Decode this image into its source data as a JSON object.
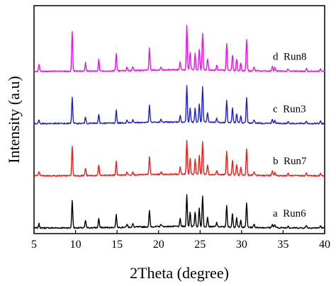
{
  "chart_data": {
    "type": "line",
    "xlabel": "2Theta (degree)",
    "ylabel": "Intensity (a.u)",
    "xlim": [
      5,
      40
    ],
    "x_ticks": [
      "5",
      "10",
      "15",
      "20",
      "25",
      "30",
      "35",
      "40"
    ],
    "x_tick_values": [
      5,
      10,
      15,
      20,
      25,
      30,
      35,
      40
    ],
    "grid": false,
    "y_ticks": "none",
    "peaks_2theta": [
      5.6,
      9.6,
      11.2,
      12.8,
      14.9,
      16.2,
      16.9,
      18.9,
      20.3,
      22.6,
      23.4,
      23.8,
      24.4,
      24.9,
      25.3,
      25.9,
      27.0,
      28.2,
      28.9,
      29.4,
      29.9,
      30.6,
      31.5,
      33.7,
      34.0,
      35.6,
      37.8,
      39.5
    ],
    "series": [
      {
        "name": "a  Run6",
        "color": "#000000",
        "baseline": 0.0,
        "peak_heights": [
          0.08,
          0.52,
          0.14,
          0.18,
          0.24,
          0.06,
          0.06,
          0.3,
          0.05,
          0.14,
          0.6,
          0.28,
          0.28,
          0.35,
          0.58,
          0.18,
          0.08,
          0.4,
          0.26,
          0.18,
          0.13,
          0.47,
          0.07,
          0.07,
          0.06,
          0.04,
          0.05,
          0.04
        ]
      },
      {
        "name": "b  Run7",
        "color": "#e8201e",
        "baseline": 1.0,
        "peak_heights": [
          0.08,
          0.55,
          0.14,
          0.2,
          0.26,
          0.06,
          0.07,
          0.34,
          0.05,
          0.14,
          0.65,
          0.3,
          0.28,
          0.36,
          0.62,
          0.18,
          0.08,
          0.45,
          0.28,
          0.2,
          0.14,
          0.5,
          0.07,
          0.08,
          0.06,
          0.04,
          0.05,
          0.04
        ]
      },
      {
        "name": "c  Run3",
        "color": "#1f22c6",
        "baseline": 2.0,
        "peak_heights": [
          0.07,
          0.5,
          0.12,
          0.16,
          0.24,
          0.06,
          0.06,
          0.32,
          0.05,
          0.13,
          0.7,
          0.26,
          0.26,
          0.34,
          0.68,
          0.18,
          0.08,
          0.42,
          0.28,
          0.18,
          0.13,
          0.48,
          0.07,
          0.07,
          0.06,
          0.04,
          0.05,
          0.04
        ]
      },
      {
        "name": "d  Run8",
        "color": "#ea12ea",
        "baseline": 3.0,
        "peak_heights": [
          0.14,
          0.75,
          0.16,
          0.22,
          0.32,
          0.07,
          0.08,
          0.42,
          0.06,
          0.16,
          0.85,
          0.34,
          0.32,
          0.4,
          0.7,
          0.22,
          0.09,
          0.52,
          0.3,
          0.22,
          0.15,
          0.6,
          0.08,
          0.09,
          0.07,
          0.05,
          0.06,
          0.05
        ]
      }
    ]
  }
}
